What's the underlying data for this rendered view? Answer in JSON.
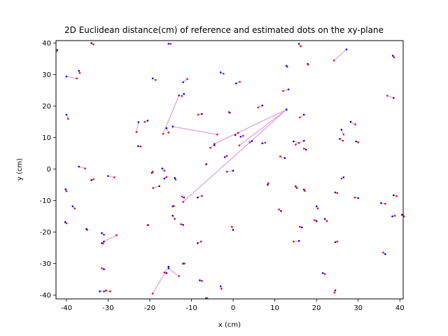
{
  "chart_data": {
    "type": "scatter",
    "title": "2D Euclidean distance(cm) of reference and estimated dots on the xy-plane",
    "xlabel": "x (cm)",
    "ylabel": "y (cm)",
    "xlim": [
      -42.5,
      40.8
    ],
    "ylim": [
      -41.2,
      40.8
    ],
    "xticks": [
      -40,
      -30,
      -20,
      -10,
      0,
      10,
      20,
      30,
      40
    ],
    "yticks": [
      -40,
      -30,
      -20,
      -10,
      0,
      10,
      20,
      30,
      40
    ],
    "grid": false,
    "colors": {
      "reference": "#0000ff",
      "estimate": "#ff0000",
      "line": "#dda0dd"
    },
    "pairs": [
      [
        -42.2,
        37.8,
        -42.3,
        37.6
      ],
      [
        -34.0,
        40.0,
        -33.5,
        39.6
      ],
      [
        -15.5,
        39.8,
        -15.0,
        39.8
      ],
      [
        15.8,
        39.8,
        16.2,
        39.0
      ],
      [
        27.2,
        38.0,
        24.2,
        34.5
      ],
      [
        38.3,
        36.0,
        38.6,
        35.5
      ],
      [
        -37.0,
        31.2,
        -36.8,
        30.5
      ],
      [
        -40.0,
        29.4,
        -37.5,
        28.8
      ],
      [
        -3.0,
        30.7,
        -2.3,
        30.3
      ],
      [
        12.8,
        32.8,
        13.0,
        32.5
      ],
      [
        17.9,
        33.4,
        18.0,
        33.2
      ],
      [
        -12.0,
        27.6,
        -11.0,
        28.6
      ],
      [
        -19.3,
        28.8,
        -18.6,
        28.3
      ],
      [
        0.7,
        27.2,
        1.6,
        27.7
      ],
      [
        -13.0,
        23.4,
        -16.8,
        11.2
      ],
      [
        -11.8,
        23.9,
        -12.3,
        23.2
      ],
      [
        13.3,
        25.3,
        12.0,
        24.8
      ],
      [
        38.5,
        22.6,
        37.0,
        23.3
      ],
      [
        7.0,
        20.2,
        6.0,
        19.6
      ],
      [
        -7.5,
        17.5,
        -8.4,
        17.3
      ],
      [
        -0.8,
        17.9,
        -1.0,
        18.1
      ],
      [
        17.0,
        17.3,
        16.0,
        16.4
      ],
      [
        -40.0,
        17.3,
        -39.6,
        16.0
      ],
      [
        -20.5,
        15.4,
        -21.2,
        15.0
      ],
      [
        -22.7,
        14.9,
        -23.2,
        11.8
      ],
      [
        28.2,
        15.0,
        29.3,
        14.2
      ],
      [
        12.8,
        18.9,
        -12.0,
        -10.4
      ],
      [
        12.8,
        18.9,
        1.5,
        7.5
      ],
      [
        12.8,
        18.9,
        -4.5,
        8.0
      ],
      [
        -14.5,
        13.5,
        -3.8,
        11.0
      ],
      [
        -16.0,
        13.0,
        -15.5,
        11.6
      ],
      [
        26.0,
        12.5,
        26.5,
        11.0
      ],
      [
        0.5,
        10.8,
        1.2,
        11.5
      ],
      [
        1.8,
        10.3,
        2.4,
        10.6
      ],
      [
        25.6,
        9.6,
        26.3,
        9.0
      ],
      [
        29.5,
        8.8,
        30.0,
        8.5
      ],
      [
        17.0,
        9.0,
        15.0,
        7.8
      ],
      [
        14.5,
        8.8,
        15.8,
        8.3
      ],
      [
        4.5,
        8.9,
        4.0,
        8.5
      ],
      [
        7.0,
        8.2,
        7.7,
        8.4
      ],
      [
        -4.5,
        7.6,
        -5.5,
        6.8
      ],
      [
        17.5,
        6.2,
        17.0,
        6.5
      ],
      [
        -22.8,
        7.3,
        -22.2,
        7.2
      ],
      [
        -2.0,
        3.8,
        -1.5,
        4.2
      ],
      [
        12.4,
        3.5,
        11.3,
        4.0
      ],
      [
        -6.4,
        1.6,
        -6.5,
        1.5
      ],
      [
        -37.0,
        0.8,
        -35.5,
        0.2
      ],
      [
        -17.0,
        0.2,
        -16.5,
        -0.5
      ],
      [
        0.0,
        -0.5,
        -1.5,
        -0.8
      ],
      [
        -19.5,
        -1.2,
        -19.3,
        -0.8
      ],
      [
        -30.0,
        -2.2,
        -28.5,
        -2.6
      ],
      [
        -34.0,
        -3.5,
        -33.5,
        -3.2
      ],
      [
        -16.5,
        -3.0,
        -16.0,
        -2.5
      ],
      [
        -14.0,
        -2.8,
        -13.8,
        -3.3
      ],
      [
        26.5,
        -2.6,
        26.0,
        -3.0
      ],
      [
        8.3,
        -5.0,
        8.4,
        -4.5
      ],
      [
        15.0,
        -5.5,
        15.3,
        -6.0
      ],
      [
        -17.7,
        -5.4,
        -19.2,
        -6.0
      ],
      [
        -40.2,
        -6.4,
        -40.0,
        -7.0
      ],
      [
        17.0,
        -6.5,
        17.2,
        -6.9
      ],
      [
        24.5,
        -7.4,
        25.0,
        -7.6
      ],
      [
        -11.8,
        -9.0,
        -12.3,
        -8.7
      ],
      [
        -8.5,
        -9.0,
        -7.5,
        -8.5
      ],
      [
        30.0,
        -9.2,
        29.2,
        -9.0
      ],
      [
        38.5,
        -8.3,
        39.2,
        -8.6
      ],
      [
        -38.5,
        -11.8,
        -38.0,
        -12.5
      ],
      [
        35.5,
        -10.8,
        36.5,
        -11.0
      ],
      [
        20.0,
        -11.8,
        20.3,
        -12.5
      ],
      [
        -14.5,
        -11.8,
        -14.2,
        -11.7
      ],
      [
        11.5,
        -13.3,
        11.0,
        -12.8
      ],
      [
        40.5,
        -14.5,
        41.0,
        -15.0
      ],
      [
        -14.5,
        -14.8,
        -14.0,
        -15.8
      ],
      [
        38.2,
        -15.0,
        38.8,
        -14.8
      ],
      [
        22.0,
        -15.8,
        22.5,
        -16.5
      ],
      [
        20.0,
        -16.5,
        19.5,
        -16.2
      ],
      [
        -40.3,
        -16.8,
        -40.0,
        -17.2
      ],
      [
        -12.0,
        -17.7,
        -12.5,
        -17.5
      ],
      [
        -20.5,
        -17.8,
        -20.4,
        -17.7
      ],
      [
        16.5,
        -18.5,
        16.0,
        -18.3
      ],
      [
        0.0,
        -19.3,
        -0.3,
        -18.3
      ],
      [
        -35.2,
        -19.0,
        -35.0,
        -19.3
      ],
      [
        -31.5,
        -20.3,
        -31.0,
        -20.8
      ],
      [
        -31.0,
        -23.0,
        -28.0,
        -21.0
      ],
      [
        15.8,
        -22.8,
        14.5,
        -23.0
      ],
      [
        24.5,
        -23.2,
        25.0,
        -23.0
      ],
      [
        -31.5,
        -23.5,
        -31.2,
        -23.6
      ],
      [
        -8.5,
        -23.5,
        -7.7,
        -23.0
      ],
      [
        36.5,
        -27.0,
        36.0,
        -26.5
      ],
      [
        -12.0,
        -30.0,
        -11.7,
        -30.0
      ],
      [
        -15.5,
        -31.5,
        -13.0,
        -34.0
      ],
      [
        -15.5,
        -31.0,
        -19.3,
        -39.5
      ],
      [
        -31.0,
        -31.8,
        -31.5,
        -31.5
      ],
      [
        -16.0,
        -33.0,
        -16.5,
        -32.8
      ],
      [
        21.5,
        -33.0,
        22.0,
        -33.3
      ],
      [
        -8.0,
        -35.3,
        -7.5,
        -35.5
      ],
      [
        -3.0,
        -37.2,
        -2.8,
        -38.0
      ],
      [
        -31.0,
        -38.8,
        -29.5,
        -38.8
      ],
      [
        -32.0,
        -38.8,
        -30.5,
        -38.5
      ],
      [
        24.5,
        -38.5,
        24.3,
        -39.2
      ],
      [
        -6.5,
        -41.0,
        -6.2,
        -41.0
      ]
    ]
  }
}
